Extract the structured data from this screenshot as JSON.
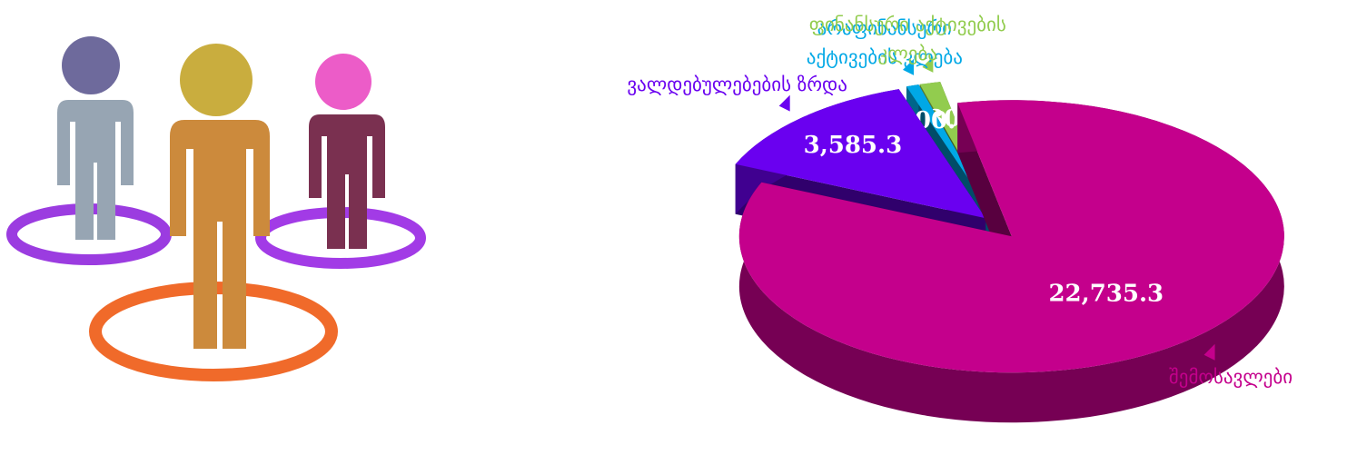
{
  "chart_data": {
    "type": "pie3d",
    "categories": [
      "შემოსავლები",
      "ვალდებულებების ზრდა",
      "არაფინანსური აქტივების კლება",
      "ფინანსური აქტივების კლება"
    ],
    "values": [
      22735.3,
      3585.3,
      200.0,
      330.0
    ],
    "value_labels": [
      "22,735.3",
      "3,585.3",
      "200.0",
      "330.0"
    ],
    "colors": [
      "#c4008c",
      "#6a00f0",
      "#00a8e6",
      "#92cc4e"
    ]
  }
}
